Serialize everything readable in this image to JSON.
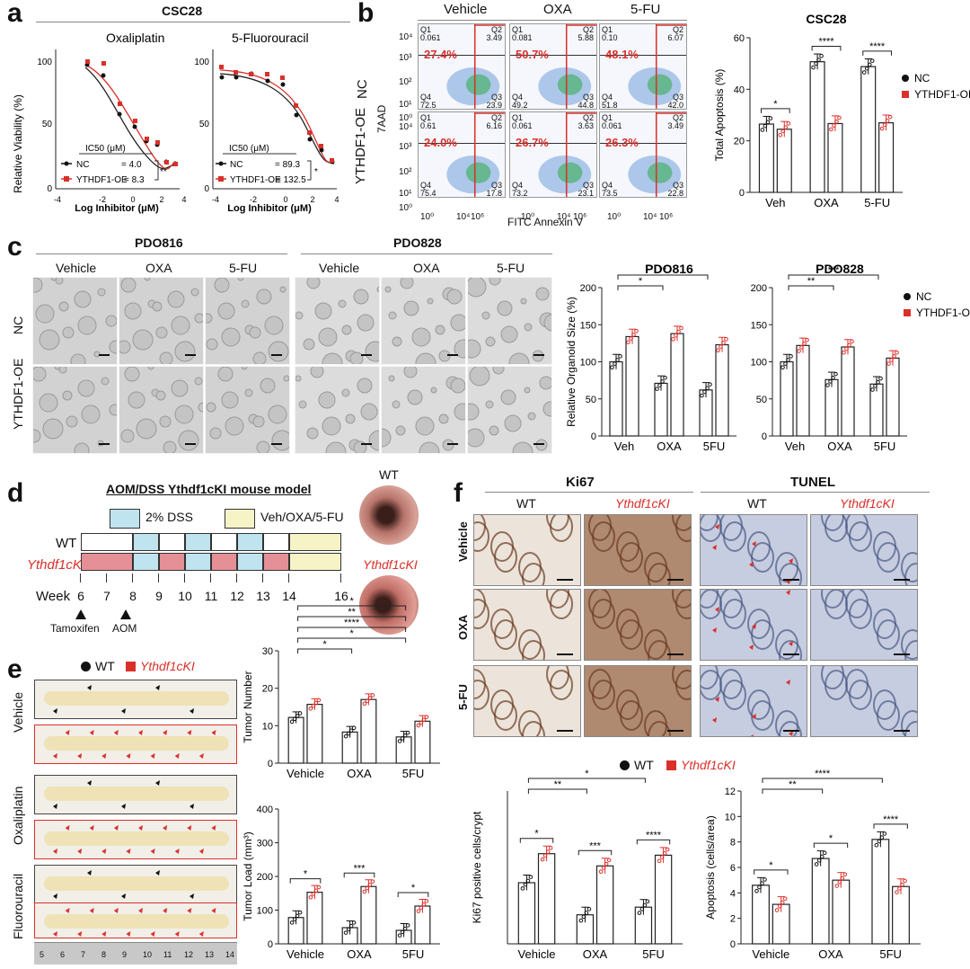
{
  "colors": {
    "nc": "#111111",
    "oe": "#d9302a",
    "dss": "#bfe3ef",
    "veh": "#f6f3c6",
    "tumor_pink": "#e58f97"
  },
  "panel_a": {
    "letter": "a",
    "title": "CSC28",
    "charts": [
      {
        "title": "Oxaliplatin",
        "ylabel": "Relative Viability (%)",
        "xlabel": "Log Inhibitor (μM)",
        "ic50_header": "IC50 (μM)",
        "nc_label": "NC",
        "nc_value": "= 4.0",
        "oe_label": "YTHDF1-OE",
        "oe_value": "= 8.3",
        "sig": "**"
      },
      {
        "title": "5-Fluorouracil",
        "ylabel": "",
        "xlabel": "Log Inhibitor (μM)",
        "ic50_header": "IC50 (μM)",
        "nc_label": "NC",
        "nc_value": "= 89.3",
        "oe_label": "YTHDF1-OE",
        "oe_value": "= 132.5",
        "sig": "*"
      }
    ]
  },
  "panel_b": {
    "letter": "b",
    "columns": [
      "Vehicle",
      "OXA",
      "5-FU"
    ],
    "rows": [
      "NC",
      "YTHDF1-OE"
    ],
    "yaxis": "7AAD",
    "xaxis": "FITC Annexin V",
    "percents": [
      [
        "27.4%",
        "50.7%",
        "48.1%"
      ],
      [
        "24.0%",
        "26.7%",
        "26.3%"
      ]
    ],
    "quadrants": [
      [
        {
          "q1": "0.061",
          "q2": "3.49",
          "q3": "23.9",
          "q4": "72.5"
        },
        {
          "q1": "0.081",
          "q2": "5.88",
          "q3": "44.8",
          "q4": "49.2"
        },
        {
          "q1": "0.10",
          "q2": "6.07",
          "q3": "42.0",
          "q4": "51.8"
        }
      ],
      [
        {
          "q1": "0.61",
          "q2": "6.16",
          "q3": "17.8",
          "q4": "75.4"
        },
        {
          "q1": "0.061",
          "q2": "3.63",
          "q3": "23.1",
          "q4": "73.2"
        },
        {
          "q1": "0.061",
          "q2": "3.49",
          "q3": "22.8",
          "q4": "73.5"
        }
      ]
    ]
  },
  "panel_c": {
    "letter": "c",
    "groups": [
      "PDO816",
      "PDO828"
    ],
    "columns": [
      "Vehicle",
      "OXA",
      "5-FU"
    ],
    "rows": [
      "NC",
      "YTHDF1-OE"
    ]
  },
  "panel_d": {
    "letter": "d",
    "title": "AOM/DSS Ythdf1cKI mouse model",
    "legend_dss": "2% DSS",
    "legend_veh": "Veh/OXA/5-FU",
    "row_wt": "WT",
    "row_cki": "Ythdf1cKI",
    "week_label": "Week",
    "weeks": [
      "6",
      "7",
      "8",
      "9",
      "10",
      "11",
      "12",
      "13",
      "14",
      "16"
    ],
    "tamoxifen": "Tamoxifen",
    "aom": "AOM",
    "endo_wt": "WT",
    "endo_cki": "Ythdf1cKI"
  },
  "panel_e": {
    "letter": "e",
    "legend_wt": "WT",
    "legend_cki": "Ythdf1cKI",
    "rows": [
      "Vehicle",
      "Oxaliplatin",
      "Fluorouracil"
    ],
    "ruler": [
      "5",
      "6",
      "7",
      "8",
      "9",
      "10",
      "11",
      "12",
      "13",
      "14"
    ]
  },
  "panel_f": {
    "letter": "f",
    "ki67": "Ki67",
    "tunel": "TUNEL",
    "wt": "WT",
    "cki": "Ythdf1cKI",
    "rows": [
      "Vehicle",
      "OXA",
      "5-FU"
    ],
    "legend_wt": "WT",
    "legend_cki": "Ythdf1cKI"
  },
  "chart_data": [
    {
      "id": "b-bar",
      "type": "bar",
      "title": "CSC28",
      "ylabel": "Total Apoptosis (%)",
      "categories": [
        "Veh",
        "OXA",
        "5-FU"
      ],
      "ylim": [
        0,
        60
      ],
      "yticks": [
        0,
        20,
        40,
        60
      ],
      "series": [
        {
          "name": "NC",
          "values": [
            26.5,
            50.7,
            48.8
          ]
        },
        {
          "name": "YTHDF1-OE",
          "values": [
            24.5,
            26.7,
            27.0
          ]
        }
      ],
      "sig": [
        "*",
        "****",
        "****"
      ]
    },
    {
      "id": "c-816",
      "type": "bar",
      "title": "PDO816",
      "ylabel": "Relative Organoid Size (%)",
      "categories": [
        "Veh",
        "OXA",
        "5FU"
      ],
      "ylim": [
        0,
        200
      ],
      "yticks": [
        0,
        50,
        100,
        150,
        200
      ],
      "series": [
        {
          "name": "NC",
          "values": [
            100,
            71,
            62
          ]
        },
        {
          "name": "YTHDF1-OE",
          "values": [
            134,
            138,
            123
          ]
        }
      ],
      "brackets": [
        {
          "label": "*"
        },
        {
          "label": "**"
        }
      ]
    },
    {
      "id": "c-828",
      "type": "bar",
      "title": "PDO828",
      "ylabel": "",
      "categories": [
        "Veh",
        "OXA",
        "5FU"
      ],
      "ylim": [
        0,
        200
      ],
      "yticks": [
        0,
        50,
        100,
        150,
        200
      ],
      "series": [
        {
          "name": "NC",
          "values": [
            100,
            76,
            70
          ]
        },
        {
          "name": "YTHDF1-OE",
          "values": [
            122,
            120,
            105
          ]
        }
      ],
      "brackets": [
        {
          "label": "**"
        },
        {
          "label": "***"
        }
      ]
    },
    {
      "id": "e-num",
      "type": "bar",
      "ylabel": "Tumor Number",
      "categories": [
        "Vehicle",
        "OXA",
        "5FU"
      ],
      "ylim": [
        0,
        30
      ],
      "yticks": [
        0,
        10,
        20,
        30
      ],
      "series": [
        {
          "name": "WT",
          "values": [
            12.2,
            8.3,
            7.0
          ]
        },
        {
          "name": "Ythdf1cKI",
          "values": [
            15.7,
            17.0,
            11.2
          ]
        }
      ],
      "brackets": [
        "*",
        "*",
        "****",
        "**",
        "*"
      ]
    },
    {
      "id": "e-load",
      "type": "bar",
      "ylabel": "Tumor Load (mm³)",
      "categories": [
        "Vehicle",
        "OXA",
        "5FU"
      ],
      "ylim": [
        0,
        400
      ],
      "yticks": [
        0,
        100,
        200,
        300,
        400
      ],
      "series": [
        {
          "name": "WT",
          "values": [
            78,
            48,
            40
          ]
        },
        {
          "name": "Ythdf1cKI",
          "values": [
            153,
            170,
            112
          ]
        }
      ],
      "sig": [
        "*",
        "***",
        "*"
      ]
    },
    {
      "id": "f-ki67",
      "type": "bar",
      "ylabel": "Ki67 positive cells/crypt",
      "categories": [
        "Vehicle",
        "OXA",
        "5FU"
      ],
      "ylim": [
        0,
        50
      ],
      "series": [
        {
          "name": "WT",
          "values": [
            20,
            9.5,
            12
          ]
        },
        {
          "name": "Ythdf1cKI",
          "values": [
            29.5,
            25.5,
            29
          ]
        }
      ],
      "sig": [
        "*",
        "***",
        "****"
      ],
      "brackets": [
        "**",
        "*"
      ]
    },
    {
      "id": "f-apo",
      "type": "bar",
      "ylabel": "Apoptosis (cells/area)",
      "categories": [
        "Vehicle",
        "OXA",
        "5FU"
      ],
      "ylim": [
        0,
        12
      ],
      "yticks": [
        0,
        2,
        4,
        6,
        8,
        10,
        12
      ],
      "series": [
        {
          "name": "WT",
          "values": [
            4.6,
            6.7,
            8.2
          ]
        },
        {
          "name": "Ythdf1cKI",
          "values": [
            3.1,
            5.0,
            4.5
          ]
        }
      ],
      "sig": [
        "*",
        "*",
        "****"
      ],
      "brackets": [
        "**",
        "****"
      ]
    }
  ]
}
